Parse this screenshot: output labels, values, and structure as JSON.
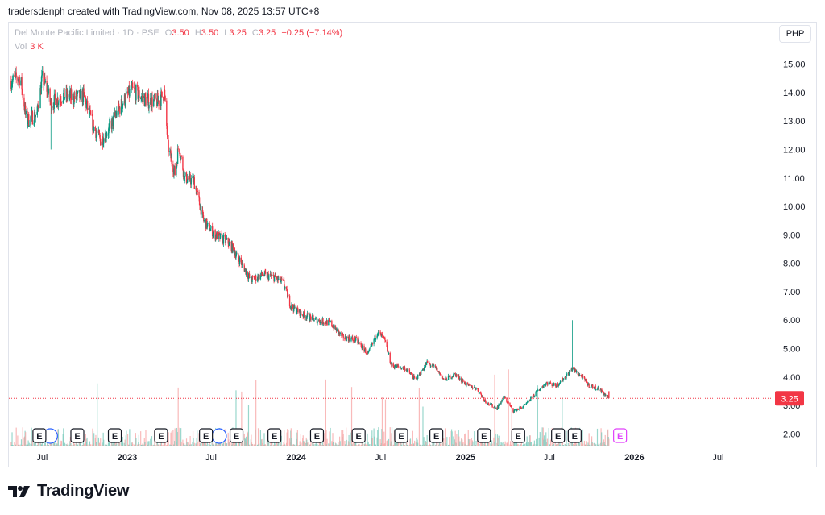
{
  "header": {
    "attribution": "tradersdenph created with TradingView.com, Nov 08, 2025 13:57 UTC+8"
  },
  "legend": {
    "symbol": "Del Monte Pacific Limited · 1D · PSE",
    "open_label": "O",
    "open": "3.50",
    "high_label": "H",
    "high": "3.50",
    "low_label": "L",
    "low": "3.25",
    "close_label": "C",
    "close": "3.25",
    "change": "−0.25 (−7.14%)",
    "vol_label": "Vol",
    "vol_value": "3 K"
  },
  "currency_button": "PHP",
  "last_price_label": "3.25",
  "earnings_marker_label": "E",
  "brand": "TradingView",
  "colors": {
    "up": "#089981",
    "down": "#f23645",
    "axis_text": "#131722",
    "grid": "#f0f3fa"
  },
  "chart_data": {
    "type": "candlestick",
    "title": "Del Monte Pacific Limited · 1D · PSE",
    "y_axis": {
      "position": "right",
      "ticks": [
        "2.00",
        "3.00",
        "4.00",
        "5.00",
        "6.00",
        "7.00",
        "8.00",
        "9.00",
        "10.00",
        "11.00",
        "12.00",
        "13.00",
        "14.00",
        "15.00"
      ],
      "range": [
        1.5,
        15.5
      ]
    },
    "x_axis": {
      "ticks": [
        {
          "label": "Jul",
          "date": "2022-07-01"
        },
        {
          "label": "2023",
          "date": "2023-01-01"
        },
        {
          "label": "Jul",
          "date": "2023-07-01"
        },
        {
          "label": "2024",
          "date": "2024-01-01"
        },
        {
          "label": "Jul",
          "date": "2024-07-01"
        },
        {
          "label": "2025",
          "date": "2025-01-01"
        },
        {
          "label": "Jul",
          "date": "2025-07-01"
        },
        {
          "label": "2026",
          "date": "2026-01-01"
        },
        {
          "label": "Jul",
          "date": "2026-07-01"
        }
      ],
      "range": [
        "2022-04-20",
        "2026-10-25"
      ]
    },
    "price_path": [
      {
        "date": "2022-04-25",
        "close": 14.4
      },
      {
        "date": "2022-05-15",
        "close": 14.55
      },
      {
        "date": "2022-05-28",
        "close": 13.0
      },
      {
        "date": "2022-06-20",
        "close": 13.25
      },
      {
        "date": "2022-07-01",
        "close": 14.5
      },
      {
        "date": "2022-07-10",
        "close": 14.2
      },
      {
        "date": "2022-07-20",
        "close": 13.6
      },
      {
        "date": "2022-08-15",
        "close": 13.9
      },
      {
        "date": "2022-09-10",
        "close": 13.8
      },
      {
        "date": "2022-09-28",
        "close": 13.9
      },
      {
        "date": "2022-10-20",
        "close": 12.8
      },
      {
        "date": "2022-11-05",
        "close": 12.3
      },
      {
        "date": "2022-11-25",
        "close": 12.8
      },
      {
        "date": "2022-12-20",
        "close": 13.6
      },
      {
        "date": "2023-01-10",
        "close": 14.1
      },
      {
        "date": "2023-02-15",
        "close": 13.7
      },
      {
        "date": "2023-03-10",
        "close": 13.7
      },
      {
        "date": "2023-03-22",
        "close": 14.0
      },
      {
        "date": "2023-03-30",
        "close": 12.1
      },
      {
        "date": "2023-04-15",
        "close": 11.1
      },
      {
        "date": "2023-04-22",
        "close": 12.2
      },
      {
        "date": "2023-05-05",
        "close": 11.0
      },
      {
        "date": "2023-05-25",
        "close": 10.9
      },
      {
        "date": "2023-06-15",
        "close": 9.5
      },
      {
        "date": "2023-07-10",
        "close": 9.0
      },
      {
        "date": "2023-08-10",
        "close": 8.7
      },
      {
        "date": "2023-09-05",
        "close": 8.0
      },
      {
        "date": "2023-09-25",
        "close": 7.4
      },
      {
        "date": "2023-10-20",
        "close": 7.6
      },
      {
        "date": "2023-11-15",
        "close": 7.5
      },
      {
        "date": "2023-12-05",
        "close": 7.3
      },
      {
        "date": "2023-12-20",
        "close": 6.5
      },
      {
        "date": "2024-01-15",
        "close": 6.2
      },
      {
        "date": "2024-02-15",
        "close": 6.0
      },
      {
        "date": "2024-03-15",
        "close": 5.9
      },
      {
        "date": "2024-04-10",
        "close": 5.4
      },
      {
        "date": "2024-05-10",
        "close": 5.3
      },
      {
        "date": "2024-06-05",
        "close": 4.8
      },
      {
        "date": "2024-06-25",
        "close": 5.6
      },
      {
        "date": "2024-07-10",
        "close": 5.3
      },
      {
        "date": "2024-07-25",
        "close": 4.4
      },
      {
        "date": "2024-08-25",
        "close": 4.3
      },
      {
        "date": "2024-09-15",
        "close": 3.9
      },
      {
        "date": "2024-10-10",
        "close": 4.5
      },
      {
        "date": "2024-10-30",
        "close": 4.3
      },
      {
        "date": "2024-11-15",
        "close": 3.9
      },
      {
        "date": "2024-12-10",
        "close": 4.1
      },
      {
        "date": "2025-01-05",
        "close": 3.7
      },
      {
        "date": "2025-01-25",
        "close": 3.6
      },
      {
        "date": "2025-02-15",
        "close": 3.1
      },
      {
        "date": "2025-03-10",
        "close": 2.9
      },
      {
        "date": "2025-03-25",
        "close": 3.3
      },
      {
        "date": "2025-04-15",
        "close": 2.8
      },
      {
        "date": "2025-05-10",
        "close": 3.0
      },
      {
        "date": "2025-06-05",
        "close": 3.5
      },
      {
        "date": "2025-06-25",
        "close": 3.8
      },
      {
        "date": "2025-07-15",
        "close": 3.7
      },
      {
        "date": "2025-08-05",
        "close": 4.0
      },
      {
        "date": "2025-08-20",
        "close": 4.3
      },
      {
        "date": "2025-09-10",
        "close": 4.0
      },
      {
        "date": "2025-09-25",
        "close": 3.7
      },
      {
        "date": "2025-10-15",
        "close": 3.6
      },
      {
        "date": "2025-11-07",
        "close": 3.25
      }
    ],
    "spikes": [
      {
        "date": "2022-07-20",
        "low": 12.0
      },
      {
        "date": "2025-08-20",
        "high": 6.0
      }
    ],
    "earnings_dates": [
      "2022-06-25",
      "2022-09-15",
      "2022-12-05",
      "2023-03-15",
      "2023-06-20",
      "2023-08-25",
      "2023-11-15",
      "2024-02-15",
      "2024-05-15",
      "2024-08-15",
      "2024-10-30",
      "2025-02-10",
      "2025-04-25",
      "2025-07-20",
      "2025-08-25"
    ],
    "dividend_dates": [
      "2022-07-01",
      "2023-07-01"
    ],
    "upcoming_earnings_date": "2025-12-01",
    "last_price": 3.25
  }
}
